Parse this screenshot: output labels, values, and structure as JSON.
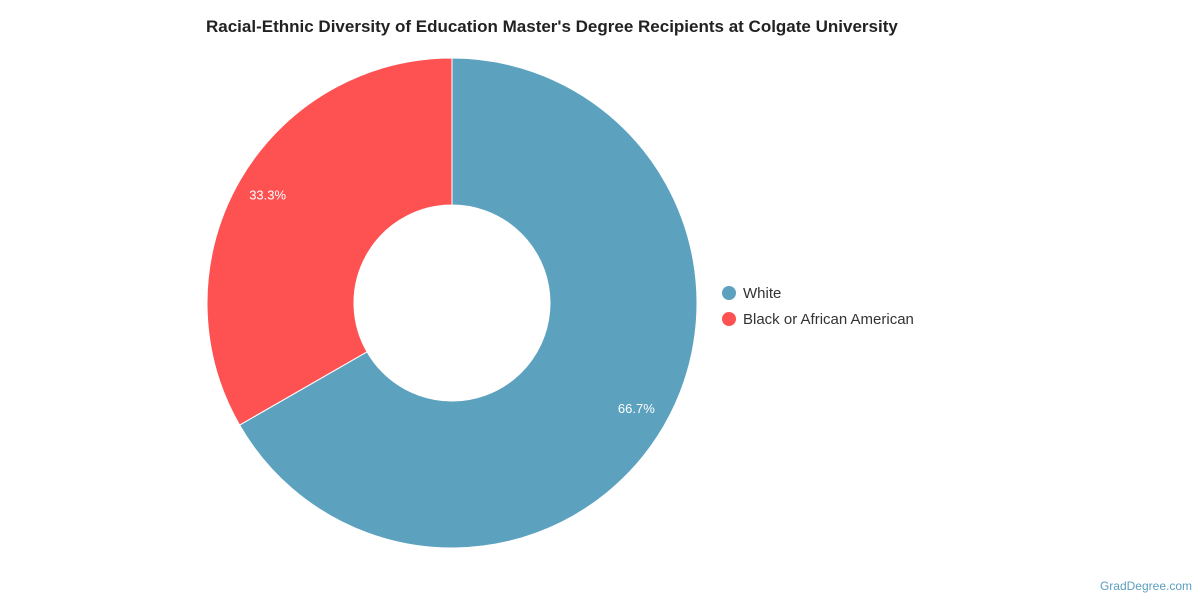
{
  "chart_data": {
    "type": "pie",
    "title": "Racial-Ethnic Diversity of Education Master's Degree Recipients at Colgate University",
    "donut": true,
    "slices": [
      {
        "label": "White",
        "value": 66.7,
        "display": "66.7%",
        "color": "#5ca2bf"
      },
      {
        "label": "Black or African American",
        "value": 33.3,
        "display": "33.3%",
        "color": "#fe5252"
      }
    ],
    "legend_position": "right"
  },
  "watermark": "GradDegree.com"
}
